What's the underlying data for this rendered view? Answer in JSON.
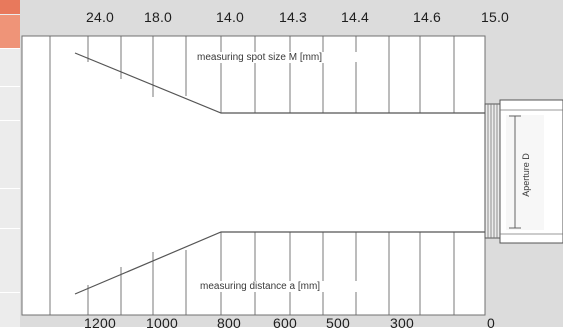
{
  "top_scale": {
    "labels": [
      "24.0",
      "18.0",
      "14.0",
      "14.3",
      "14.4",
      "14.6",
      "15.0"
    ]
  },
  "bottom_scale": {
    "labels": [
      "1200",
      "1000",
      "800",
      "600",
      "500",
      "300",
      "0"
    ]
  },
  "labels": {
    "spot_size": "measuring spot size M [mm]",
    "distance": "measuring distance a [mm]",
    "aperture": "Aperture D"
  },
  "colors": {
    "background": "#dcdcdc",
    "panel": "#ffffff",
    "lines": "#555555",
    "sidebar_accent": "#e8795c"
  }
}
